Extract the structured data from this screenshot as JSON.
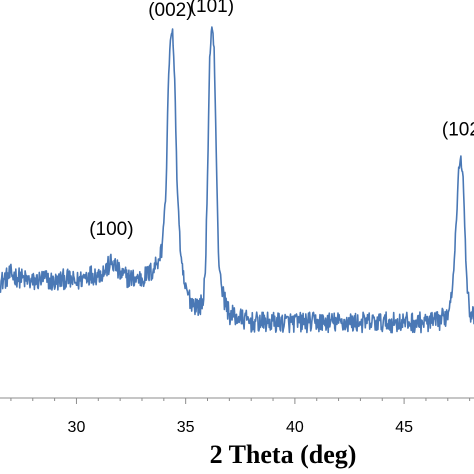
{
  "chart_data": {
    "type": "line",
    "title": "",
    "xlabel": "2 Theta (deg)",
    "ylabel": "",
    "xlim": [
      26.5,
      48.2
    ],
    "ylim": [
      0,
      100
    ],
    "x_ticks": [
      30,
      35,
      40,
      45
    ],
    "x_tick_labels": [
      "30",
      "35",
      "40",
      "45"
    ],
    "grid": false,
    "series": [
      {
        "color": "#4a78b5",
        "points": [
          [
            26.5,
            29
          ],
          [
            27.0,
            31
          ],
          [
            27.5,
            30
          ],
          [
            28.0,
            29
          ],
          [
            28.5,
            30
          ],
          [
            29.0,
            29
          ],
          [
            29.5,
            30
          ],
          [
            30.0,
            29
          ],
          [
            30.5,
            31
          ],
          [
            31.0,
            31
          ],
          [
            31.3,
            32
          ],
          [
            31.6,
            34
          ],
          [
            31.8,
            33
          ],
          [
            32.0,
            31
          ],
          [
            32.5,
            30
          ],
          [
            33.0,
            30
          ],
          [
            33.5,
            32
          ],
          [
            33.9,
            37
          ],
          [
            34.1,
            52
          ],
          [
            34.2,
            78
          ],
          [
            34.3,
            90
          ],
          [
            34.4,
            92
          ],
          [
            34.5,
            80
          ],
          [
            34.6,
            55
          ],
          [
            34.8,
            33
          ],
          [
            35.0,
            27
          ],
          [
            35.3,
            24
          ],
          [
            35.6,
            23
          ],
          [
            35.8,
            24
          ],
          [
            35.9,
            33
          ],
          [
            36.0,
            55
          ],
          [
            36.1,
            85
          ],
          [
            36.2,
            94
          ],
          [
            36.3,
            88
          ],
          [
            36.4,
            62
          ],
          [
            36.5,
            36
          ],
          [
            36.7,
            26
          ],
          [
            37.0,
            21
          ],
          [
            37.5,
            20
          ],
          [
            38.0,
            19
          ],
          [
            39.0,
            19
          ],
          [
            40.0,
            19
          ],
          [
            41.0,
            19
          ],
          [
            42.0,
            19
          ],
          [
            43.0,
            19
          ],
          [
            44.0,
            19
          ],
          [
            45.0,
            19
          ],
          [
            46.0,
            19
          ],
          [
            46.5,
            19
          ],
          [
            47.0,
            21
          ],
          [
            47.2,
            28
          ],
          [
            47.4,
            45
          ],
          [
            47.5,
            58
          ],
          [
            47.6,
            60
          ],
          [
            47.7,
            55
          ],
          [
            47.8,
            40
          ],
          [
            47.9,
            28
          ],
          [
            48.0,
            22
          ],
          [
            48.2,
            20
          ]
        ]
      }
    ],
    "annotations": [
      {
        "text": "(100)",
        "x": 31.6,
        "y": 41
      },
      {
        "text": "(002)",
        "x": 34.3,
        "y": 96
      },
      {
        "text": "(101)",
        "x": 36.2,
        "y": 97
      },
      {
        "text": "(102",
        "x": 47.6,
        "y": 66
      }
    ]
  }
}
